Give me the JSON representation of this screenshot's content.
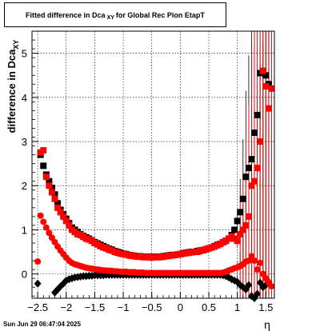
{
  "title": {
    "main": "Fitted difference in Dca",
    "subscript": "XY",
    "suffix": "for Global Rec Pion EtapT"
  },
  "timestamp": "Sun Jun 29 06:47:04 2025",
  "chart_data": {
    "type": "scatter",
    "xlabel": "η",
    "ylabel": "difference in Dca",
    "ylabel_subscript": "XY",
    "xlim": [
      -2.6,
      1.65
    ],
    "ylim": [
      -0.55,
      5.5
    ],
    "x_ticks": [
      -2.5,
      -2,
      -1.5,
      -1,
      -0.5,
      0,
      0.5,
      1,
      1.5
    ],
    "x_tick_labels": [
      "−2.5",
      "−2",
      "−1.5",
      "−1",
      "−0.5",
      "0",
      "0.5",
      "1",
      "1.5"
    ],
    "y_ticks": [
      0,
      1,
      2,
      3,
      4,
      5
    ],
    "y_tick_labels": [
      "0",
      "1",
      "2",
      "3",
      "4",
      "5"
    ],
    "grid": true,
    "series": [
      {
        "color": "#000000",
        "marker": "square",
        "x": [
          -2.45,
          -2.4,
          -2.35,
          -2.3,
          -2.25,
          -2.2,
          -2.15,
          -2.1,
          -2.05,
          -2.0,
          -1.95,
          -1.9,
          -1.85,
          -1.8,
          -1.75,
          -1.7,
          -1.65,
          -1.6,
          -1.55,
          -1.5,
          -1.45,
          -1.4,
          -1.35,
          -1.3,
          -1.25,
          -1.2,
          -1.15,
          -1.1,
          -1.05,
          -1.0,
          -0.95,
          -0.9,
          -0.85,
          -0.8,
          -0.75,
          -0.7,
          -0.65,
          -0.6,
          -0.55,
          -0.5,
          -0.45,
          -0.4,
          -0.35,
          -0.3,
          -0.25,
          -0.2,
          -0.15,
          -0.1,
          -0.05,
          0.0,
          0.05,
          0.1,
          0.15,
          0.2,
          0.25,
          0.3,
          0.35,
          0.4,
          0.45,
          0.5,
          0.55,
          0.6,
          0.65,
          0.7,
          0.75,
          0.8,
          0.85,
          0.9,
          0.95,
          1.0,
          1.05,
          1.1,
          1.15,
          1.2,
          1.25,
          1.3,
          1.35,
          1.4,
          1.45,
          1.5,
          1.55
        ],
        "y": [
          2.7,
          2.45,
          2.25,
          2.1,
          1.95,
          1.8,
          1.6,
          1.45,
          1.35,
          1.25,
          1.15,
          1.05,
          1.0,
          0.95,
          0.9,
          0.86,
          0.83,
          0.8,
          0.76,
          0.72,
          0.69,
          0.66,
          0.63,
          0.6,
          0.57,
          0.55,
          0.52,
          0.5,
          0.48,
          0.46,
          0.45,
          0.43,
          0.42,
          0.41,
          0.4,
          0.4,
          0.39,
          0.39,
          0.39,
          0.38,
          0.39,
          0.39,
          0.39,
          0.4,
          0.41,
          0.42,
          0.43,
          0.43,
          0.44,
          0.45,
          0.47,
          0.48,
          0.49,
          0.5,
          0.5,
          0.52,
          0.53,
          0.54,
          0.56,
          0.58,
          0.6,
          0.63,
          0.66,
          0.68,
          0.72,
          0.75,
          0.8,
          0.88,
          1.0,
          1.2,
          1.4,
          1.7,
          2.2,
          2.4,
          2.6,
          3.2,
          3.6,
          4.55,
          4.6,
          4.5,
          4.3
        ]
      },
      {
        "color": "#ff0000",
        "marker": "square",
        "x": [
          -2.45,
          -2.4,
          -2.35,
          -2.3,
          -2.25,
          -2.2,
          -2.15,
          -2.1,
          -2.05,
          -2.0,
          -1.95,
          -1.9,
          -1.85,
          -1.8,
          -1.75,
          -1.7,
          -1.65,
          -1.6,
          -1.55,
          -1.5,
          -1.45,
          -1.4,
          -1.35,
          -1.3,
          -1.25,
          -1.2,
          -1.15,
          -1.1,
          -1.05,
          -1.0,
          -0.95,
          -0.9,
          -0.85,
          -0.8,
          -0.75,
          -0.7,
          -0.65,
          -0.6,
          -0.55,
          -0.5,
          -0.45,
          -0.4,
          -0.35,
          -0.3,
          -0.25,
          -0.2,
          -0.15,
          -0.1,
          -0.05,
          0.0,
          0.05,
          0.1,
          0.15,
          0.2,
          0.25,
          0.3,
          0.35,
          0.4,
          0.45,
          0.5,
          0.55,
          0.6,
          0.65,
          0.7,
          0.75,
          0.8,
          0.85,
          0.9,
          0.95,
          1.0,
          1.05,
          1.1,
          1.15,
          1.2,
          1.25,
          1.3,
          1.35,
          1.4,
          1.45,
          1.5,
          1.55,
          1.6
        ],
        "y": [
          2.75,
          2.8,
          2.2,
          2.0,
          1.85,
          1.7,
          1.5,
          1.4,
          1.3,
          1.2,
          1.1,
          1.0,
          0.95,
          0.9,
          0.88,
          0.84,
          0.8,
          0.78,
          0.75,
          0.7,
          0.67,
          0.63,
          0.6,
          0.58,
          0.55,
          0.53,
          0.5,
          0.48,
          0.46,
          0.45,
          0.44,
          0.42,
          0.41,
          0.4,
          0.39,
          0.39,
          0.38,
          0.38,
          0.38,
          0.37,
          0.38,
          0.38,
          0.38,
          0.39,
          0.4,
          0.41,
          0.42,
          0.43,
          0.44,
          0.45,
          0.46,
          0.47,
          0.48,
          0.49,
          0.5,
          0.5,
          0.52,
          0.54,
          0.56,
          0.58,
          0.6,
          0.62,
          0.65,
          0.68,
          0.72,
          0.75,
          0.8,
          0.85,
          0.8,
          0.75,
          0.9,
          1.0,
          1.1,
          1.3,
          2.0,
          2.1,
          2.4,
          3.0,
          4.6,
          4.25,
          3.75,
          4.2
        ]
      },
      {
        "color": "#000000",
        "marker": "diamond",
        "x": [
          -2.5,
          -2.2,
          -2.15,
          -2.1,
          -2.05,
          -2.0,
          -1.95,
          -1.9,
          -1.85,
          -1.8,
          -1.75,
          -1.7,
          -1.65,
          -1.6,
          -1.55,
          -1.5,
          -1.45,
          -1.4,
          -1.35,
          -1.3,
          -1.25,
          -1.2,
          -1.15,
          -1.1,
          -1.05,
          -1.0,
          -0.95,
          -0.9,
          -0.85,
          -0.8,
          -0.75,
          -0.7,
          -0.65,
          -0.6,
          -0.55,
          -0.5,
          -0.45,
          -0.4,
          -0.35,
          -0.3,
          -0.25,
          -0.2,
          -0.15,
          -0.1,
          -0.05,
          0.0,
          0.05,
          0.1,
          0.15,
          0.2,
          0.25,
          0.3,
          0.35,
          0.4,
          0.45,
          0.5,
          0.55,
          0.6,
          0.65,
          0.7,
          0.75,
          0.8,
          0.85,
          0.9,
          0.95,
          1.0,
          1.05,
          1.1,
          1.15,
          1.2,
          1.25,
          1.3,
          1.35,
          1.4,
          1.45,
          1.5,
          1.55
        ],
        "y": [
          -0.22,
          -0.42,
          -0.35,
          -0.28,
          -0.22,
          -0.15,
          -0.12,
          -0.1,
          -0.08,
          -0.07,
          -0.06,
          -0.05,
          -0.05,
          -0.04,
          -0.04,
          -0.03,
          -0.03,
          -0.03,
          -0.03,
          -0.02,
          -0.02,
          -0.02,
          -0.02,
          -0.02,
          -0.02,
          -0.02,
          -0.02,
          -0.02,
          -0.02,
          -0.02,
          -0.02,
          -0.02,
          -0.02,
          -0.02,
          -0.02,
          -0.02,
          -0.02,
          -0.02,
          -0.02,
          -0.02,
          -0.02,
          -0.02,
          -0.02,
          -0.02,
          -0.02,
          -0.02,
          -0.02,
          -0.02,
          -0.02,
          -0.02,
          -0.02,
          -0.02,
          -0.02,
          -0.02,
          -0.02,
          -0.02,
          -0.02,
          -0.02,
          -0.02,
          -0.02,
          -0.03,
          -0.05,
          -0.08,
          -0.12,
          -0.15,
          -0.18,
          -0.25,
          -0.3,
          -0.35,
          -0.25,
          -0.5,
          -0.55,
          -0.45,
          -0.2,
          -0.3,
          -0.25,
          -0.18
        ]
      },
      {
        "color": "#ff0000",
        "marker": "circle",
        "x": [
          -2.5,
          -2.45,
          -2.4,
          -2.35,
          -2.3,
          -2.25,
          -2.2,
          -2.15,
          -2.1,
          -2.05,
          -2.0,
          -1.95,
          -1.9,
          -1.85,
          -1.8,
          -1.75,
          -1.7,
          -1.65,
          -1.6,
          -1.55,
          -1.5,
          -1.45,
          -1.4,
          -1.35,
          -1.3,
          -1.25,
          -1.2,
          -1.15,
          -1.1,
          -1.05,
          -1.0,
          -0.95,
          -0.9,
          -0.85,
          -0.8,
          -0.75,
          -0.7,
          -0.65,
          -0.6,
          -0.55,
          -0.5,
          -0.45,
          -0.4,
          -0.35,
          -0.3,
          -0.25,
          -0.2,
          -0.15,
          -0.1,
          -0.05,
          0.0,
          0.05,
          0.1,
          0.15,
          0.2,
          0.25,
          0.3,
          0.35,
          0.4,
          0.45,
          0.5,
          0.55,
          0.6,
          0.65,
          0.7,
          0.75,
          0.8,
          0.85,
          0.9,
          0.95,
          1.0,
          1.05,
          1.1,
          1.15,
          1.2,
          1.25,
          1.3,
          1.35,
          1.4,
          1.45,
          1.5,
          1.55,
          1.6
        ],
        "y": [
          0.28,
          1.32,
          1.18,
          1.05,
          0.93,
          0.82,
          0.72,
          0.62,
          0.53,
          0.45,
          0.37,
          0.3,
          0.25,
          0.22,
          0.2,
          0.18,
          0.16,
          0.14,
          0.13,
          0.12,
          0.11,
          0.1,
          0.09,
          0.08,
          0.08,
          0.07,
          0.07,
          0.06,
          0.06,
          0.05,
          0.05,
          0.05,
          0.04,
          0.04,
          0.04,
          0.03,
          0.03,
          0.03,
          0.02,
          0.02,
          0.02,
          0.02,
          0.02,
          0.02,
          0.02,
          0.02,
          0.02,
          0.02,
          0.02,
          0.02,
          0.02,
          0.02,
          0.02,
          0.02,
          0.02,
          0.02,
          0.02,
          0.02,
          0.02,
          0.02,
          0.02,
          0.02,
          0.02,
          0.02,
          0.02,
          0.03,
          0.05,
          0.08,
          0.1,
          0.13,
          0.15,
          0.18,
          0.22,
          0.28,
          0.3,
          0.4,
          0.3,
          0.1,
          0.25,
          0.0,
          -0.1,
          -0.2,
          -0.28
        ]
      }
    ]
  }
}
